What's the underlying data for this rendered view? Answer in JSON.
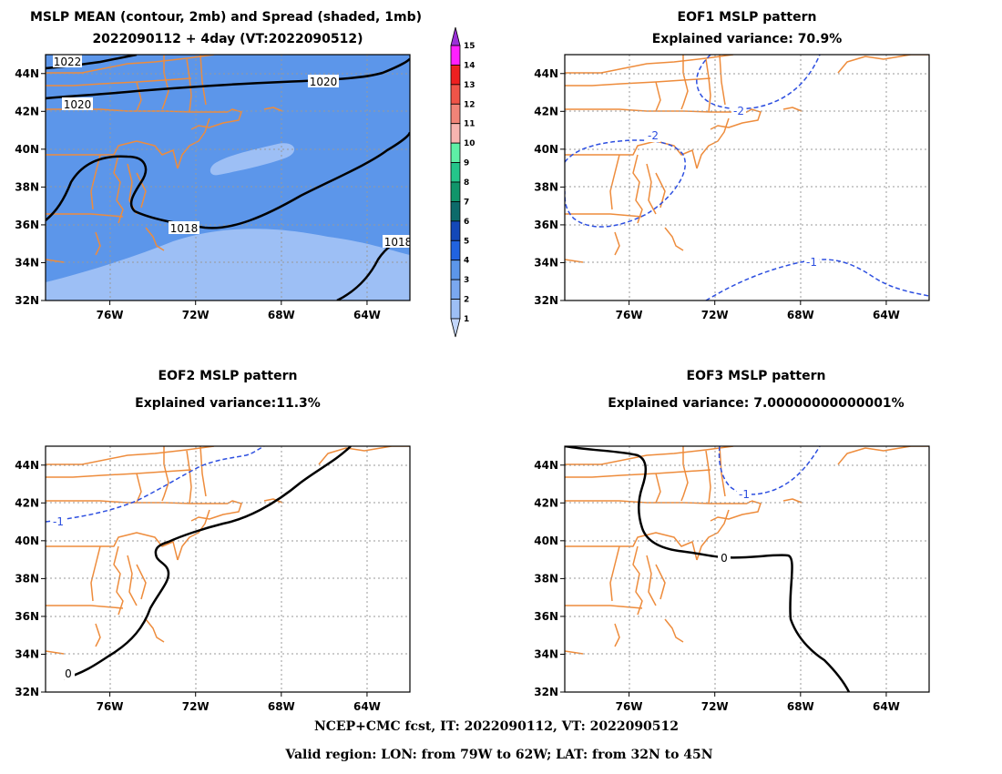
{
  "footer": {
    "line1": "NCEP+CMC fcst, IT: 2022090112, VT: 2022090512",
    "line2": "Valid region: LON: from 79W to 62W; LAT: from 32N to 45N"
  },
  "axes": {
    "lat_ticks": [
      "32N",
      "34N",
      "36N",
      "38N",
      "40N",
      "42N",
      "44N"
    ],
    "lon_ticks": [
      "76W",
      "72W",
      "68W",
      "64W"
    ]
  },
  "colors": {
    "coast": "#ee8c3c",
    "spread_bg": "#5c96ea",
    "spread_light": "#9dbff5",
    "contour_pos": "#000000",
    "contour_neg": "#2d4fe0",
    "grid": "#999999"
  },
  "panels": [
    {
      "id": "mslp-mean",
      "title_line1": "MSLP MEAN (contour, 2mb) and Spread (shaded, 1mb)",
      "title_line2": "2022090112 + 4day (VT:2022090512)",
      "contour_labels": [
        "1022",
        "1020",
        "1020",
        "1018",
        "1018"
      ]
    },
    {
      "id": "eof1",
      "title_line1": "EOF1 MSLP pattern",
      "title_line2": "Explained variance: 70.9%",
      "contour_labels": [
        "-2",
        "-2",
        "-1"
      ]
    },
    {
      "id": "eof2",
      "title_line1": "EOF2 MSLP pattern",
      "title_line2": "Explained variance:11.3%",
      "contour_labels": [
        "-1",
        "0"
      ]
    },
    {
      "id": "eof3",
      "title_line1": "EOF3 MSLP pattern",
      "title_line2": "Explained variance: 7.00000000000001%",
      "contour_labels": [
        "-1",
        "0"
      ]
    }
  ],
  "colorbar": {
    "labels": [
      "1",
      "2",
      "3",
      "4",
      "5",
      "6",
      "7",
      "8",
      "9",
      "10",
      "11",
      "12",
      "13",
      "14",
      "15"
    ],
    "colors": [
      "#c2d6fb",
      "#9dbff5",
      "#7aa8f0",
      "#5c96ea",
      "#2163e0",
      "#1448b8",
      "#0d6a6a",
      "#10956a",
      "#24c58a",
      "#5ef0a6",
      "#f7b4b0",
      "#f18478",
      "#f05448",
      "#ee2020",
      "#ff20ff",
      "#9a30d8"
    ]
  }
}
